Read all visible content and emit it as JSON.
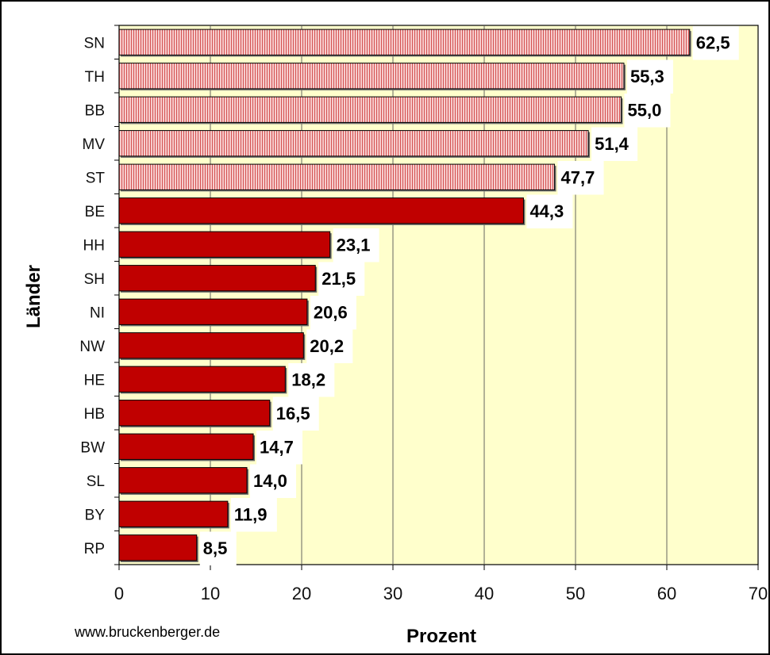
{
  "chart_data": {
    "type": "bar",
    "orientation": "horizontal",
    "categories": [
      "SN",
      "TH",
      "BB",
      "MV",
      "ST",
      "BE",
      "HH",
      "SH",
      "NI",
      "NW",
      "HE",
      "HB",
      "BW",
      "SL",
      "BY",
      "RP"
    ],
    "values": [
      62.5,
      55.3,
      55.0,
      51.4,
      47.7,
      44.3,
      23.1,
      21.5,
      20.6,
      20.2,
      18.2,
      16.5,
      14.7,
      14.0,
      11.9,
      8.5
    ],
    "value_labels": [
      "62,5",
      "55,3",
      "55,0",
      "51,4",
      "47,7",
      "44,3",
      "23,1",
      "21,5",
      "20,6",
      "20,2",
      "18,2",
      "16,5",
      "14,7",
      "14,0",
      "11,9",
      "8,5"
    ],
    "xticks": [
      "0",
      "10",
      "20",
      "30",
      "40",
      "50",
      "60",
      "70"
    ],
    "xlim": [
      0,
      70
    ],
    "xlabel": "Prozent",
    "ylabel": "Länder",
    "credit": "www.bruckenberger.de",
    "grid": "vertical",
    "colors": {
      "plot_background": "#ffffcc",
      "bar_solid": "#c00000",
      "bar_hatched": "#f6cccc",
      "hatch_line": "#d04444"
    },
    "hatched_categories": [
      "SN",
      "TH",
      "BB",
      "MV",
      "ST"
    ]
  }
}
